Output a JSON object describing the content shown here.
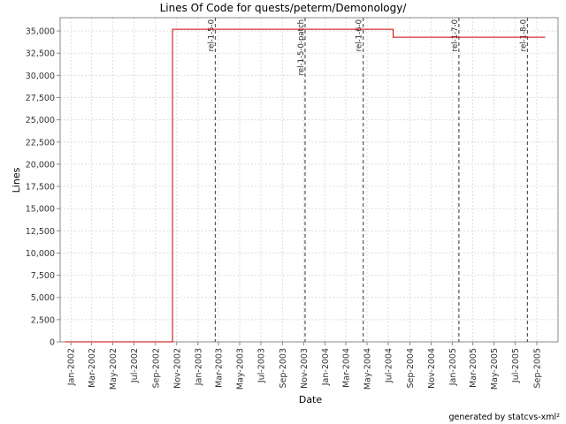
{
  "chart_data": {
    "type": "line",
    "title": "Lines Of Code for quests/peterm/Demonology/",
    "xlabel": "Date",
    "ylabel": "Lines",
    "ylim": [
      0,
      36500
    ],
    "yticks": [
      "0",
      "2,500",
      "5,000",
      "7,500",
      "10,000",
      "12,500",
      "15,000",
      "17,500",
      "20,000",
      "22,500",
      "25,000",
      "27,500",
      "30,000",
      "32,500",
      "35,000"
    ],
    "xticks": [
      "Jan-2002",
      "Mar-2002",
      "May-2002",
      "Jul-2002",
      "Sep-2002",
      "Nov-2002",
      "Jan-2003",
      "Mar-2003",
      "May-2003",
      "Jul-2003",
      "Sep-2003",
      "Nov-2003",
      "Jan-2004",
      "Mar-2004",
      "May-2004",
      "Jul-2004",
      "Sep-2004",
      "Nov-2004",
      "Jan-2005",
      "Mar-2005",
      "May-2005",
      "Jul-2005",
      "Sep-2005"
    ],
    "grid": true,
    "series": [
      {
        "color": "#cc0000",
        "step": true,
        "points": [
          {
            "x": "2001-12-15",
            "y": 0
          },
          {
            "x": "2002-10-20",
            "y": 0
          },
          {
            "x": "2002-10-20",
            "y": 35200
          },
          {
            "x": "2004-07-15",
            "y": 35200
          },
          {
            "x": "2004-07-15",
            "y": 34300
          },
          {
            "x": "2005-09-25",
            "y": 34300
          }
        ]
      }
    ],
    "markers": [
      {
        "label": "rel-1-5-0",
        "x": "2003-02-20"
      },
      {
        "label": "rel-1-5-0-patch",
        "x": "2003-11-05"
      },
      {
        "label": "rel-1-6-0",
        "x": "2004-04-20"
      },
      {
        "label": "rel-1-7-0",
        "x": "2005-01-20"
      },
      {
        "label": "rel-1-8-0",
        "x": "2005-08-05"
      }
    ]
  },
  "footer": "generated by statcvs-xml²"
}
